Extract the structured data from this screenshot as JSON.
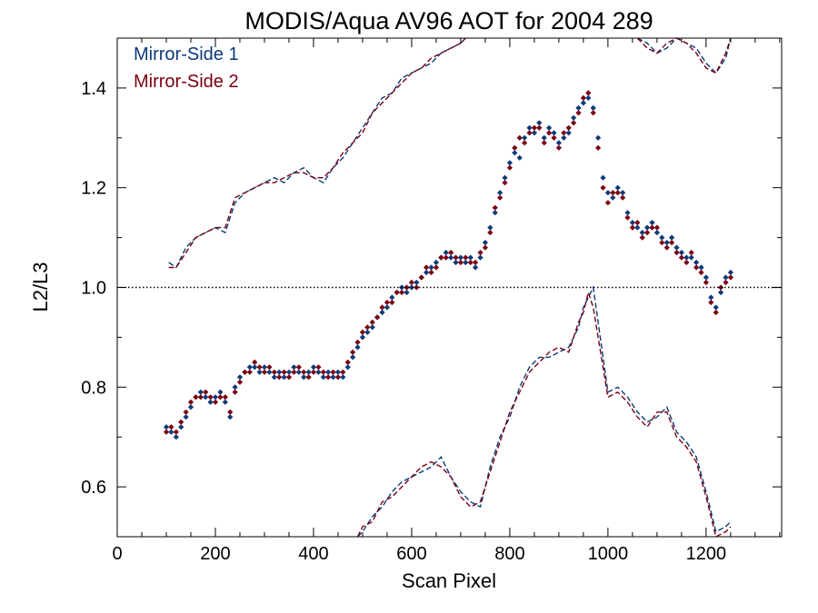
{
  "chart_data": {
    "type": "scatter",
    "title": "MODIS/Aqua AV96 AOT for 2004 289",
    "xlabel": "Scan Pixel",
    "ylabel": "L2/L3",
    "xlim": [
      0,
      1354
    ],
    "ylim": [
      0.5,
      1.5
    ],
    "xticks": [
      0,
      200,
      400,
      600,
      800,
      1000,
      1200
    ],
    "xtick_labels": [
      "0",
      "200",
      "400",
      "600",
      "800",
      "1000",
      "1200"
    ],
    "yticks": [
      0.6,
      0.8,
      1.0,
      1.2,
      1.4
    ],
    "ytick_labels": [
      "0.6",
      "0.8",
      "1.0",
      "1.2",
      "1.4"
    ],
    "reference_line": 1.0,
    "legend_position": "top-left",
    "colors": {
      "ms1": "#0b3a7a",
      "ms2": "#7a0012"
    },
    "series": [
      {
        "name": "Mirror-Side 1",
        "style": "points",
        "x": [
          100,
          110,
          120,
          130,
          140,
          150,
          160,
          170,
          180,
          190,
          200,
          210,
          220,
          230,
          240,
          250,
          260,
          270,
          280,
          290,
          300,
          310,
          320,
          330,
          340,
          350,
          360,
          370,
          380,
          390,
          400,
          410,
          420,
          430,
          440,
          450,
          460,
          470,
          480,
          490,
          500,
          510,
          520,
          530,
          540,
          550,
          560,
          570,
          580,
          590,
          600,
          610,
          620,
          630,
          640,
          650,
          660,
          670,
          680,
          690,
          700,
          710,
          720,
          730,
          740,
          750,
          760,
          770,
          780,
          790,
          800,
          810,
          820,
          830,
          840,
          850,
          860,
          870,
          880,
          890,
          900,
          910,
          920,
          930,
          940,
          950,
          960,
          970,
          980,
          990,
          1000,
          1010,
          1020,
          1030,
          1040,
          1050,
          1060,
          1070,
          1080,
          1090,
          1100,
          1110,
          1120,
          1130,
          1140,
          1150,
          1160,
          1170,
          1180,
          1190,
          1200,
          1210,
          1220,
          1230,
          1240,
          1250
        ],
        "y": [
          0.72,
          0.71,
          0.7,
          0.72,
          0.74,
          0.76,
          0.78,
          0.79,
          0.78,
          0.77,
          0.78,
          0.79,
          0.77,
          0.74,
          0.8,
          0.82,
          0.83,
          0.84,
          0.84,
          0.83,
          0.84,
          0.83,
          0.82,
          0.83,
          0.82,
          0.83,
          0.84,
          0.83,
          0.82,
          0.83,
          0.84,
          0.83,
          0.82,
          0.83,
          0.82,
          0.83,
          0.82,
          0.84,
          0.86,
          0.88,
          0.9,
          0.91,
          0.92,
          0.94,
          0.95,
          0.96,
          0.98,
          0.99,
          1.0,
          0.99,
          1.0,
          1.01,
          1.02,
          1.03,
          1.04,
          1.05,
          1.06,
          1.07,
          1.06,
          1.05,
          1.06,
          1.05,
          1.06,
          1.04,
          1.06,
          1.09,
          1.12,
          1.15,
          1.19,
          1.22,
          1.25,
          1.27,
          1.26,
          1.3,
          1.32,
          1.31,
          1.33,
          1.3,
          1.32,
          1.31,
          1.29,
          1.3,
          1.31,
          1.34,
          1.36,
          1.37,
          1.38,
          1.36,
          1.3,
          1.22,
          1.19,
          1.18,
          1.2,
          1.19,
          1.15,
          1.13,
          1.12,
          1.11,
          1.12,
          1.13,
          1.11,
          1.1,
          1.09,
          1.1,
          1.08,
          1.07,
          1.06,
          1.06,
          1.05,
          1.04,
          1.02,
          0.98,
          0.96,
          0.99,
          1.02,
          1.03
        ]
      },
      {
        "name": "Mirror-Side 2",
        "style": "points",
        "x": [
          100,
          110,
          120,
          130,
          140,
          150,
          160,
          170,
          180,
          190,
          200,
          210,
          220,
          230,
          240,
          250,
          260,
          270,
          280,
          290,
          300,
          310,
          320,
          330,
          340,
          350,
          360,
          370,
          380,
          390,
          400,
          410,
          420,
          430,
          440,
          450,
          460,
          470,
          480,
          490,
          500,
          510,
          520,
          530,
          540,
          550,
          560,
          570,
          580,
          590,
          600,
          610,
          620,
          630,
          640,
          650,
          660,
          670,
          680,
          690,
          700,
          710,
          720,
          730,
          740,
          750,
          760,
          770,
          780,
          790,
          800,
          810,
          820,
          830,
          840,
          850,
          860,
          870,
          880,
          890,
          900,
          910,
          920,
          930,
          940,
          950,
          960,
          970,
          980,
          990,
          1000,
          1010,
          1020,
          1030,
          1040,
          1050,
          1060,
          1070,
          1080,
          1090,
          1100,
          1110,
          1120,
          1130,
          1140,
          1150,
          1160,
          1170,
          1180,
          1190,
          1200,
          1210,
          1220,
          1230,
          1240,
          1250
        ],
        "y": [
          0.71,
          0.72,
          0.71,
          0.73,
          0.75,
          0.77,
          0.78,
          0.78,
          0.79,
          0.78,
          0.77,
          0.78,
          0.78,
          0.75,
          0.79,
          0.81,
          0.83,
          0.83,
          0.85,
          0.84,
          0.83,
          0.84,
          0.83,
          0.82,
          0.83,
          0.82,
          0.83,
          0.84,
          0.83,
          0.82,
          0.83,
          0.84,
          0.83,
          0.82,
          0.83,
          0.82,
          0.83,
          0.85,
          0.87,
          0.89,
          0.91,
          0.92,
          0.93,
          0.94,
          0.96,
          0.97,
          0.97,
          0.99,
          0.99,
          1.0,
          1.01,
          1.0,
          1.02,
          1.04,
          1.03,
          1.04,
          1.06,
          1.06,
          1.07,
          1.06,
          1.05,
          1.06,
          1.05,
          1.05,
          1.07,
          1.08,
          1.11,
          1.16,
          1.18,
          1.21,
          1.24,
          1.28,
          1.3,
          1.29,
          1.31,
          1.32,
          1.32,
          1.29,
          1.31,
          1.3,
          1.28,
          1.31,
          1.32,
          1.33,
          1.35,
          1.38,
          1.39,
          1.35,
          1.28,
          1.2,
          1.17,
          1.19,
          1.19,
          1.18,
          1.14,
          1.12,
          1.13,
          1.1,
          1.11,
          1.12,
          1.12,
          1.09,
          1.08,
          1.09,
          1.07,
          1.06,
          1.05,
          1.07,
          1.04,
          1.03,
          1.01,
          0.97,
          0.95,
          1.0,
          1.01,
          1.02
        ]
      },
      {
        "name": "Mirror-Side 1 upper",
        "style": "dashed",
        "color_key": "ms1",
        "x": [
          105,
          120,
          140,
          160,
          180,
          200,
          220,
          240,
          260,
          280,
          300,
          320,
          340,
          360,
          380,
          400,
          420,
          440,
          460,
          480,
          500,
          520,
          540,
          560,
          580,
          600,
          620,
          640,
          660,
          680,
          700,
          710
        ],
        "y": [
          1.05,
          1.04,
          1.08,
          1.1,
          1.11,
          1.12,
          1.11,
          1.17,
          1.19,
          1.2,
          1.21,
          1.22,
          1.21,
          1.23,
          1.24,
          1.22,
          1.21,
          1.24,
          1.26,
          1.29,
          1.32,
          1.35,
          1.38,
          1.39,
          1.42,
          1.43,
          1.44,
          1.45,
          1.47,
          1.48,
          1.49,
          1.5
        ]
      },
      {
        "name": "Mirror-Side 2 upper",
        "style": "dashed",
        "color_key": "ms2",
        "x": [
          105,
          120,
          140,
          160,
          180,
          200,
          220,
          240,
          260,
          280,
          300,
          320,
          340,
          360,
          380,
          400,
          420,
          440,
          460,
          480,
          500,
          520,
          540,
          560,
          580,
          600,
          620,
          640,
          660,
          680,
          700,
          710
        ],
        "y": [
          1.04,
          1.04,
          1.07,
          1.1,
          1.11,
          1.12,
          1.12,
          1.18,
          1.19,
          1.2,
          1.21,
          1.21,
          1.22,
          1.23,
          1.23,
          1.22,
          1.22,
          1.24,
          1.27,
          1.29,
          1.31,
          1.35,
          1.37,
          1.39,
          1.41,
          1.43,
          1.44,
          1.46,
          1.47,
          1.48,
          1.49,
          1.5
        ]
      },
      {
        "name": "Mirror-Side 1 upper right",
        "style": "dashed",
        "color_key": "ms1",
        "x": [
          1060,
          1080,
          1100,
          1120,
          1140,
          1160,
          1180,
          1200,
          1220,
          1240,
          1250
        ],
        "y": [
          1.5,
          1.49,
          1.47,
          1.48,
          1.5,
          1.49,
          1.48,
          1.45,
          1.43,
          1.46,
          1.5
        ]
      },
      {
        "name": "Mirror-Side 2 upper right",
        "style": "dashed",
        "color_key": "ms2",
        "x": [
          1060,
          1080,
          1100,
          1120,
          1140,
          1160,
          1180,
          1200,
          1220,
          1240,
          1250
        ],
        "y": [
          1.5,
          1.48,
          1.47,
          1.49,
          1.5,
          1.49,
          1.47,
          1.44,
          1.43,
          1.47,
          1.5
        ]
      },
      {
        "name": "Mirror-Side 1 lower",
        "style": "dashed",
        "color_key": "ms1",
        "x": [
          490,
          500,
          520,
          540,
          560,
          580,
          600,
          620,
          640,
          660,
          680,
          700,
          720,
          740,
          760,
          780,
          800,
          820,
          840,
          860,
          880,
          900,
          920,
          940,
          950,
          960,
          970,
          980,
          1000,
          1020,
          1040,
          1060,
          1080,
          1100,
          1120,
          1140,
          1160,
          1180,
          1200,
          1220,
          1240,
          1250
        ],
        "y": [
          0.5,
          0.51,
          0.54,
          0.56,
          0.59,
          0.61,
          0.62,
          0.63,
          0.64,
          0.66,
          0.62,
          0.59,
          0.57,
          0.56,
          0.64,
          0.7,
          0.74,
          0.8,
          0.84,
          0.86,
          0.86,
          0.87,
          0.88,
          0.92,
          0.96,
          0.98,
          1.0,
          0.93,
          0.79,
          0.8,
          0.78,
          0.75,
          0.73,
          0.74,
          0.76,
          0.71,
          0.69,
          0.66,
          0.59,
          0.51,
          0.52,
          0.53
        ]
      },
      {
        "name": "Mirror-Side 2 lower",
        "style": "dashed",
        "color_key": "ms2",
        "x": [
          490,
          500,
          520,
          540,
          560,
          580,
          600,
          620,
          640,
          660,
          680,
          700,
          720,
          740,
          760,
          780,
          800,
          820,
          840,
          860,
          880,
          900,
          920,
          940,
          950,
          960,
          970,
          980,
          1000,
          1020,
          1040,
          1060,
          1080,
          1100,
          1120,
          1140,
          1160,
          1180,
          1200,
          1220,
          1240,
          1250
        ],
        "y": [
          0.5,
          0.52,
          0.53,
          0.57,
          0.58,
          0.6,
          0.62,
          0.64,
          0.65,
          0.64,
          0.62,
          0.58,
          0.56,
          0.57,
          0.63,
          0.69,
          0.75,
          0.79,
          0.83,
          0.85,
          0.87,
          0.88,
          0.87,
          0.93,
          0.95,
          0.99,
          0.96,
          0.9,
          0.78,
          0.79,
          0.77,
          0.74,
          0.72,
          0.75,
          0.75,
          0.7,
          0.68,
          0.65,
          0.58,
          0.5,
          0.51,
          0.52
        ]
      }
    ]
  }
}
